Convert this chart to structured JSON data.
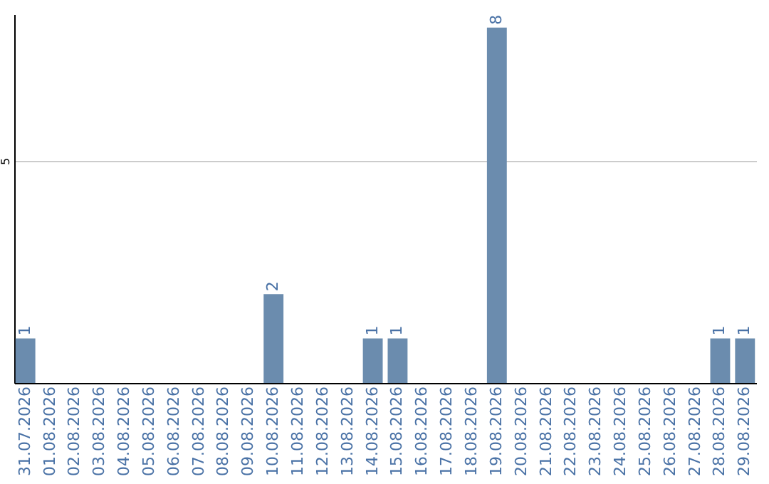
{
  "chart_data": {
    "type": "bar",
    "categories": [
      "31.07.2026",
      "01.08.2026",
      "02.08.2026",
      "03.08.2026",
      "04.08.2026",
      "05.08.2026",
      "06.08.2026",
      "07.08.2026",
      "08.08.2026",
      "09.08.2026",
      "10.08.2026",
      "11.08.2026",
      "12.08.2026",
      "13.08.2026",
      "14.08.2026",
      "15.08.2026",
      "16.08.2026",
      "17.08.2026",
      "18.08.2026",
      "19.08.2026",
      "20.08.2026",
      "21.08.2026",
      "22.08.2026",
      "23.08.2026",
      "24.08.2026",
      "25.08.2026",
      "26.08.2026",
      "27.08.2026",
      "28.08.2026",
      "29.08.2026"
    ],
    "values": [
      1,
      0,
      0,
      0,
      0,
      0,
      0,
      0,
      0,
      0,
      2,
      0,
      0,
      0,
      1,
      1,
      0,
      0,
      0,
      8,
      0,
      0,
      0,
      0,
      0,
      0,
      0,
      0,
      1,
      1
    ],
    "value_labels": [
      "1",
      null,
      null,
      null,
      null,
      null,
      null,
      null,
      null,
      null,
      "2",
      null,
      null,
      null,
      "1",
      "1",
      null,
      null,
      null,
      "8",
      null,
      null,
      null,
      null,
      null,
      null,
      null,
      null,
      "1",
      "1"
    ],
    "color": "#6b8cae",
    "ylim": [
      0,
      8.3
    ],
    "yticks": [
      5
    ],
    "grid": "y"
  }
}
